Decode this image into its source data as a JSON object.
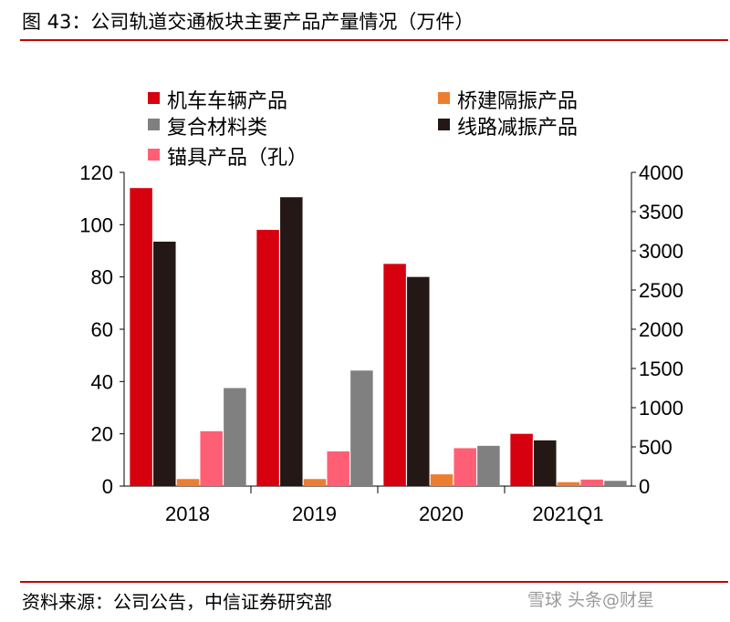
{
  "header": {
    "title": "图 43：公司轨道交通板块主要产品产量情况（万件）"
  },
  "footer": {
    "source": "资料来源：公司公告，中信证券研究部",
    "watermark": "雪球 头条@财星"
  },
  "chart_data": {
    "type": "bar",
    "title": "图 43：公司轨道交通板块主要产品产量情况（万件）",
    "categories": [
      "2018",
      "2019",
      "2020",
      "2021Q1"
    ],
    "y_left": {
      "ylim": [
        0,
        120
      ],
      "ticks": [
        "0",
        "20",
        "40",
        "60",
        "80",
        "100",
        "120"
      ]
    },
    "y_right": {
      "ylim": [
        0,
        4000
      ],
      "ticks": [
        "0",
        "500",
        "1000",
        "1500",
        "2000",
        "2500",
        "3000",
        "3500",
        "4000"
      ]
    },
    "series": [
      {
        "name": "机车车辆产品",
        "color": "#d7000f",
        "axis": "left",
        "values": [
          114,
          98,
          85,
          20
        ]
      },
      {
        "name": "线路减振产品",
        "color": "#231815",
        "axis": "left",
        "values": [
          93.5,
          110.5,
          80,
          17.5
        ]
      },
      {
        "name": "桥建隔振产品",
        "color": "#ed7d31",
        "axis": "left",
        "values": [
          2.7,
          2.7,
          4.5,
          1.5
        ]
      },
      {
        "name": "锚具产品（孔）",
        "color": "#ff5f75",
        "axis": "left",
        "values": [
          21,
          13.3,
          14.5,
          2.5
        ]
      },
      {
        "name": "复合材料类",
        "color": "#808080",
        "axis": "left",
        "values": [
          37.5,
          44.2,
          15.4,
          2
        ]
      }
    ],
    "legend_rows": [
      [
        "机车车辆产品",
        "桥建隔振产品"
      ],
      [
        "复合材料类",
        "线路减振产品"
      ],
      [
        "锚具产品（孔）"
      ]
    ],
    "legend_position": "top-left"
  }
}
